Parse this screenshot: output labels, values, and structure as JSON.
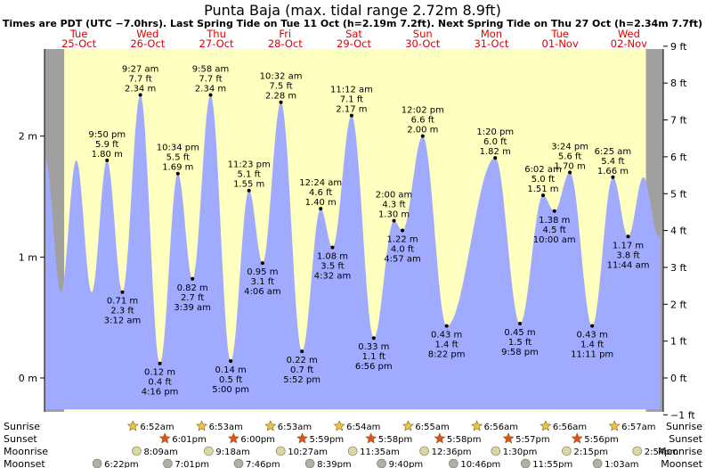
{
  "title": "Punta Baja (max. tidal range 2.72m 8.9ft)",
  "subtitle": "Times are PDT (UTC −7.0hrs). Last Spring Tide on Tue 11 Oct (h=2.19m 7.2ft). Next Spring Tide on Thu 27 Oct (h=2.34m 7.7ft)",
  "colors": {
    "water": "#a0aaff",
    "day": "#ffffc0",
    "night": "#a0a0a0",
    "day_labels": "#e00000",
    "sun_marker": "#e8c840",
    "sunset_marker": "#e05020",
    "moon_marker": "#d8d8a0",
    "moonset_marker": "#b0b0a0"
  },
  "chart_data": {
    "type": "area",
    "x_unit": "hours since Tue 25-Oct 00:00 PDT",
    "ylim": [
      -0.28,
      2.72
    ],
    "y_ticks_m": [
      {
        "value": 0,
        "label": "0 m"
      },
      {
        "value": 1,
        "label": "1 m"
      },
      {
        "value": 2,
        "label": "2 m"
      }
    ],
    "y_ticks_ft": [
      {
        "value": -1,
        "label": "−1 ft"
      },
      {
        "value": 0,
        "label": "0 ft"
      },
      {
        "value": 1,
        "label": "1 ft"
      },
      {
        "value": 2,
        "label": "2 ft"
      },
      {
        "value": 3,
        "label": "3 ft"
      },
      {
        "value": 4,
        "label": "4 ft"
      },
      {
        "value": 5,
        "label": "5 ft"
      },
      {
        "value": 6,
        "label": "6 ft"
      },
      {
        "value": 7,
        "label": "7 ft"
      },
      {
        "value": 8,
        "label": "8 ft"
      },
      {
        "value": 9,
        "label": "9 ft"
      }
    ],
    "days": [
      {
        "name": "Tue",
        "date": "25-Oct"
      },
      {
        "name": "Wed",
        "date": "26-Oct"
      },
      {
        "name": "Thu",
        "date": "27-Oct"
      },
      {
        "name": "Fri",
        "date": "28-Oct"
      },
      {
        "name": "Sat",
        "date": "29-Oct"
      },
      {
        "name": "Sun",
        "date": "30-Oct"
      },
      {
        "name": "Mon",
        "date": "31-Oct"
      },
      {
        "name": "Tue",
        "date": "01-Nov"
      },
      {
        "name": "Wed",
        "date": "02-Nov"
      }
    ],
    "day_spans": [
      {
        "sunrise": 6.87,
        "sunset": 42.02
      },
      {
        "sunrise": 30.88,
        "sunset": 66.0
      },
      {
        "sunrise": 54.88,
        "sunset": 89.98
      },
      {
        "sunrise": 78.9,
        "sunset": 113.97
      },
      {
        "sunrise": 102.92,
        "sunset": 137.97
      },
      {
        "sunrise": 126.93,
        "sunset": 161.95
      },
      {
        "sunrise": 150.93,
        "sunset": 185.93
      },
      {
        "sunrise": 174.95,
        "sunset": 209.95
      }
    ],
    "tides": [
      {
        "t": 21.83,
        "h": 1.8,
        "time": "9:50 pm",
        "ft": "5.9 ft",
        "m": "1.80 m",
        "type": "high"
      },
      {
        "t": 27.2,
        "h": 0.71,
        "time": "3:12 am",
        "ft": "2.3 ft",
        "m": "0.71 m",
        "type": "low"
      },
      {
        "t": 33.45,
        "h": 2.34,
        "time": "9:27 am",
        "ft": "7.7 ft",
        "m": "2.34 m",
        "type": "high"
      },
      {
        "t": 40.27,
        "h": 0.12,
        "time": "4:16 pm",
        "ft": "0.4 ft",
        "m": "0.12 m",
        "type": "low"
      },
      {
        "t": 46.57,
        "h": 1.69,
        "time": "10:34 pm",
        "ft": "5.5 ft",
        "m": "1.69 m",
        "type": "high"
      },
      {
        "t": 51.65,
        "h": 0.82,
        "time": "3:39 am",
        "ft": "2.7 ft",
        "m": "0.82 m",
        "type": "low"
      },
      {
        "t": 57.97,
        "h": 2.34,
        "time": "9:58 am",
        "ft": "7.7 ft",
        "m": "2.34 m",
        "type": "high"
      },
      {
        "t": 65.0,
        "h": 0.14,
        "time": "5:00 pm",
        "ft": "0.5 ft",
        "m": "0.14 m",
        "type": "low"
      },
      {
        "t": 71.38,
        "h": 1.55,
        "time": "11:23 pm",
        "ft": "5.1 ft",
        "m": "1.55 m",
        "type": "high"
      },
      {
        "t": 76.1,
        "h": 0.95,
        "time": "4:06 am",
        "ft": "3.1 ft",
        "m": "0.95 m",
        "type": "low"
      },
      {
        "t": 82.53,
        "h": 2.28,
        "time": "10:32 am",
        "ft": "7.5 ft",
        "m": "2.28 m",
        "type": "high"
      },
      {
        "t": 89.87,
        "h": 0.22,
        "time": "5:52 pm",
        "ft": "0.7 ft",
        "m": "0.22 m",
        "type": "low"
      },
      {
        "t": 96.4,
        "h": 1.4,
        "time": "12:24 am",
        "ft": "4.6 ft",
        "m": "1.40 m",
        "type": "high"
      },
      {
        "t": 100.53,
        "h": 1.08,
        "time": "4:32 am",
        "ft": "3.5 ft",
        "m": "1.08 m",
        "type": "low"
      },
      {
        "t": 107.2,
        "h": 2.17,
        "time": "11:12 am",
        "ft": "7.1 ft",
        "m": "2.17 m",
        "type": "high"
      },
      {
        "t": 114.93,
        "h": 0.33,
        "time": "6:56 pm",
        "ft": "1.1 ft",
        "m": "0.33 m",
        "type": "low"
      },
      {
        "t": 122.0,
        "h": 1.3,
        "time": "2:00 am",
        "ft": "4.3 ft",
        "m": "1.30 m",
        "type": "high"
      },
      {
        "t": 124.95,
        "h": 1.22,
        "time": "4:57 am",
        "ft": "4.0 ft",
        "m": "1.22 m",
        "type": "low"
      },
      {
        "t": 132.03,
        "h": 2.0,
        "time": "12:02 pm",
        "ft": "6.6 ft",
        "m": "2.00 m",
        "type": "high"
      },
      {
        "t": 140.37,
        "h": 0.43,
        "time": "8:22 pm",
        "ft": "1.4 ft",
        "m": "0.43 m",
        "type": "low"
      },
      {
        "t": 157.33,
        "h": 1.82,
        "time": "1:20 pm",
        "ft": "6.0 ft",
        "m": "1.82 m",
        "type": "high"
      },
      {
        "t": 165.97,
        "h": 0.45,
        "time": "9:58 pm",
        "ft": "1.5 ft",
        "m": "0.45 m",
        "type": "low"
      },
      {
        "t": 174.03,
        "h": 1.51,
        "time": "6:02 am",
        "ft": "5.0 ft",
        "m": "1.51 m",
        "type": "high"
      },
      {
        "t": 178.0,
        "h": 1.38,
        "time": "10:00 am",
        "ft": "4.5 ft",
        "m": "1.38 m",
        "type": "low"
      },
      {
        "t": 183.4,
        "h": 1.7,
        "time": "3:24 pm",
        "ft": "5.6 ft",
        "m": "1.70 m",
        "type": "high"
      },
      {
        "t": 191.18,
        "h": 0.43,
        "time": "11:11 pm",
        "ft": "1.4 ft",
        "m": "0.43 m",
        "type": "low"
      },
      {
        "t": 198.42,
        "h": 1.66,
        "time": "6:25 am",
        "ft": "5.4 ft",
        "m": "1.66 m",
        "type": "high"
      },
      {
        "t": 203.73,
        "h": 1.17,
        "time": "11:44 am",
        "ft": "3.8 ft",
        "m": "1.17 m",
        "type": "low"
      }
    ],
    "astro": {
      "row_labels": {
        "sunrise": "Sunrise",
        "sunset": "Sunset",
        "moonrise": "Moonrise",
        "moonset": "Moonset"
      },
      "sunrise": [
        {
          "t": 30.87,
          "label": "6:52am"
        },
        {
          "t": 54.88,
          "label": "6:53am"
        },
        {
          "t": 78.88,
          "label": "6:53am"
        },
        {
          "t": 102.9,
          "label": "6:54am"
        },
        {
          "t": 126.92,
          "label": "6:55am"
        },
        {
          "t": 150.93,
          "label": "6:56am"
        },
        {
          "t": 174.93,
          "label": "6:56am"
        },
        {
          "t": 198.95,
          "label": "6:57am"
        }
      ],
      "sunset": [
        {
          "t": 42.02,
          "label": "6:01pm"
        },
        {
          "t": 66.0,
          "label": "6:00pm"
        },
        {
          "t": 89.98,
          "label": "5:59pm"
        },
        {
          "t": 113.97,
          "label": "5:58pm"
        },
        {
          "t": 137.97,
          "label": "5:58pm"
        },
        {
          "t": 161.95,
          "label": "5:57pm"
        },
        {
          "t": 185.93,
          "label": "5:56pm"
        }
      ],
      "moonrise": [
        {
          "t": 32.15,
          "label": "8:09am"
        },
        {
          "t": 57.3,
          "label": "9:18am"
        },
        {
          "t": 82.45,
          "label": "10:27am"
        },
        {
          "t": 107.58,
          "label": "11:35am"
        },
        {
          "t": 132.6,
          "label": "12:36pm"
        },
        {
          "t": 157.5,
          "label": "1:30pm"
        },
        {
          "t": 182.25,
          "label": "2:15pm"
        },
        {
          "t": 206.9,
          "label": "2:54pm"
        }
      ],
      "moonset": [
        {
          "t": 18.37,
          "label": "6:22pm"
        },
        {
          "t": 43.02,
          "label": "7:01pm"
        },
        {
          "t": 67.77,
          "label": "7:46pm"
        },
        {
          "t": 92.65,
          "label": "8:39pm"
        },
        {
          "t": 117.67,
          "label": "9:40pm"
        },
        {
          "t": 142.77,
          "label": "10:46pm"
        },
        {
          "t": 167.92,
          "label": "11:55pm"
        },
        {
          "t": 193.05,
          "label": "1:03am"
        }
      ]
    }
  }
}
